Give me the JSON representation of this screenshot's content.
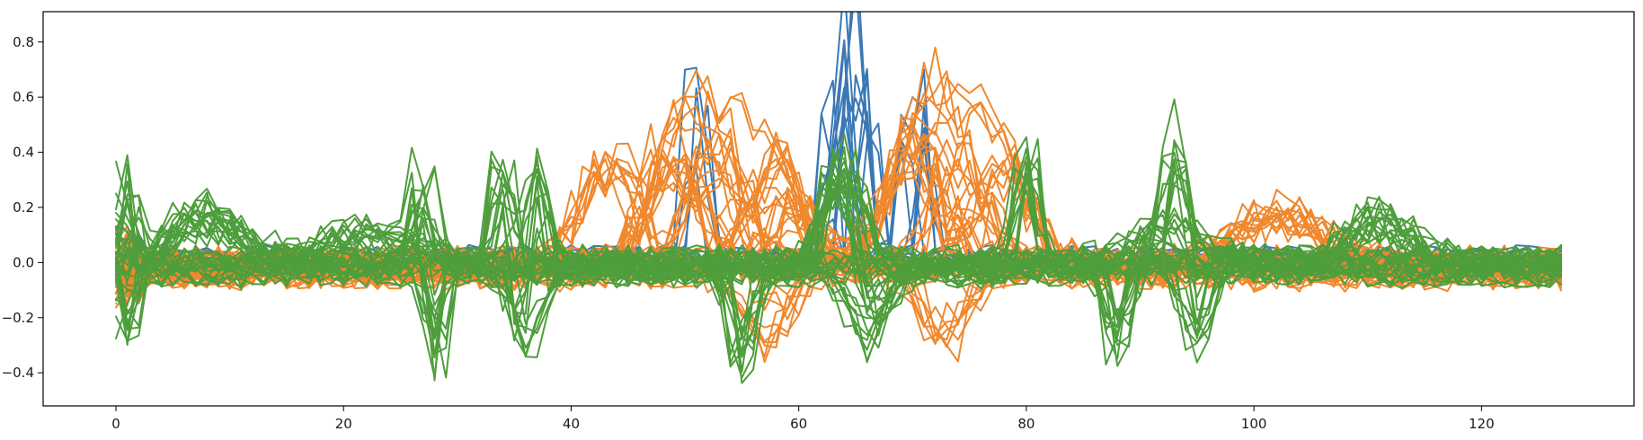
{
  "chart_data": {
    "type": "line",
    "title": "",
    "xlabel": "",
    "ylabel": "",
    "xlim": [
      -6.4,
      133.4
    ],
    "ylim": [
      -0.52,
      0.91
    ],
    "x_ticks": [
      0,
      20,
      40,
      60,
      80,
      100,
      120
    ],
    "y_ticks": [
      -0.4,
      -0.2,
      0.0,
      0.2,
      0.4,
      0.6,
      0.8
    ],
    "x_tick_labels": [
      "0",
      "20",
      "40",
      "60",
      "80",
      "100",
      "120"
    ],
    "y_tick_labels": [
      "−0.4",
      "−0.2",
      "0.0",
      "0.2",
      "0.4",
      "0.6",
      "0.8"
    ],
    "x_count": 128,
    "grid": false,
    "legend": "none",
    "series_groups": [
      {
        "color": "#3a78b5",
        "line_count": 12,
        "baseline_band": [
          -0.06,
          0.06
        ],
        "features": [
          {
            "center": 51,
            "peak": 0.83,
            "width": 0.6
          },
          {
            "center": 62.3,
            "peak": 0.72,
            "width": 0.5
          },
          {
            "center": 63,
            "peak": 0.84,
            "width": 0.5
          },
          {
            "center": 63.8,
            "peak": 0.83,
            "width": 0.5
          },
          {
            "center": 64.5,
            "peak": 0.8,
            "width": 0.5
          },
          {
            "center": 65.2,
            "peak": 0.84,
            "width": 0.5
          },
          {
            "center": 66,
            "peak": 0.8,
            "width": 0.5
          },
          {
            "center": 69.3,
            "peak": 0.65,
            "width": 0.7
          },
          {
            "center": 71,
            "peak": 0.73,
            "width": 0.5
          }
        ],
        "min_observed": -0.17
      },
      {
        "color": "#f0882e",
        "line_count": 40,
        "baseline_band": [
          -0.1,
          0.06
        ],
        "features": [
          {
            "center": 43,
            "peak": 0.46,
            "width": 2.5
          },
          {
            "center": 49,
            "peak": 0.47,
            "width": 2.5
          },
          {
            "center": 53,
            "peak": 0.52,
            "width": 2.5
          },
          {
            "center": 58,
            "peak": 0.48,
            "width": 2.5
          },
          {
            "center": 70,
            "peak": 0.52,
            "width": 2.5
          },
          {
            "center": 74,
            "peak": 0.48,
            "width": 2.5
          },
          {
            "center": 78,
            "peak": 0.44,
            "width": 2.5
          },
          {
            "center": 102,
            "peak": 0.23,
            "width": 4
          },
          {
            "center": 57,
            "peak": -0.33,
            "width": 2
          },
          {
            "center": 73,
            "peak": -0.3,
            "width": 2
          }
        ]
      },
      {
        "color": "#4e9e3c",
        "line_count": 40,
        "baseline_band": [
          -0.09,
          0.06
        ],
        "features": [
          {
            "center": 1,
            "peak": 0.39,
            "width": 0.6
          },
          {
            "center": 1,
            "peak": -0.31,
            "width": 0.6
          },
          {
            "center": 8,
            "peak": 0.22,
            "width": 3
          },
          {
            "center": 22,
            "peak": 0.15,
            "width": 4
          },
          {
            "center": 27,
            "peak": 0.38,
            "width": 0.8
          },
          {
            "center": 28,
            "peak": -0.45,
            "width": 0.6
          },
          {
            "center": 34,
            "peak": 0.46,
            "width": 0.8
          },
          {
            "center": 37,
            "peak": 0.46,
            "width": 0.8
          },
          {
            "center": 36,
            "peak": -0.37,
            "width": 1.2
          },
          {
            "center": 55,
            "peak": -0.46,
            "width": 0.8
          },
          {
            "center": 64,
            "peak": 0.47,
            "width": 1.5
          },
          {
            "center": 66,
            "peak": -0.3,
            "width": 1.5
          },
          {
            "center": 80,
            "peak": 0.5,
            "width": 0.8
          },
          {
            "center": 88,
            "peak": -0.4,
            "width": 0.8
          },
          {
            "center": 93,
            "peak": 0.48,
            "width": 0.8
          },
          {
            "center": 93,
            "peak": 0.18,
            "width": 4
          },
          {
            "center": 95,
            "peak": -0.35,
            "width": 1.2
          },
          {
            "center": 111,
            "peak": 0.2,
            "width": 3
          }
        ]
      }
    ]
  }
}
